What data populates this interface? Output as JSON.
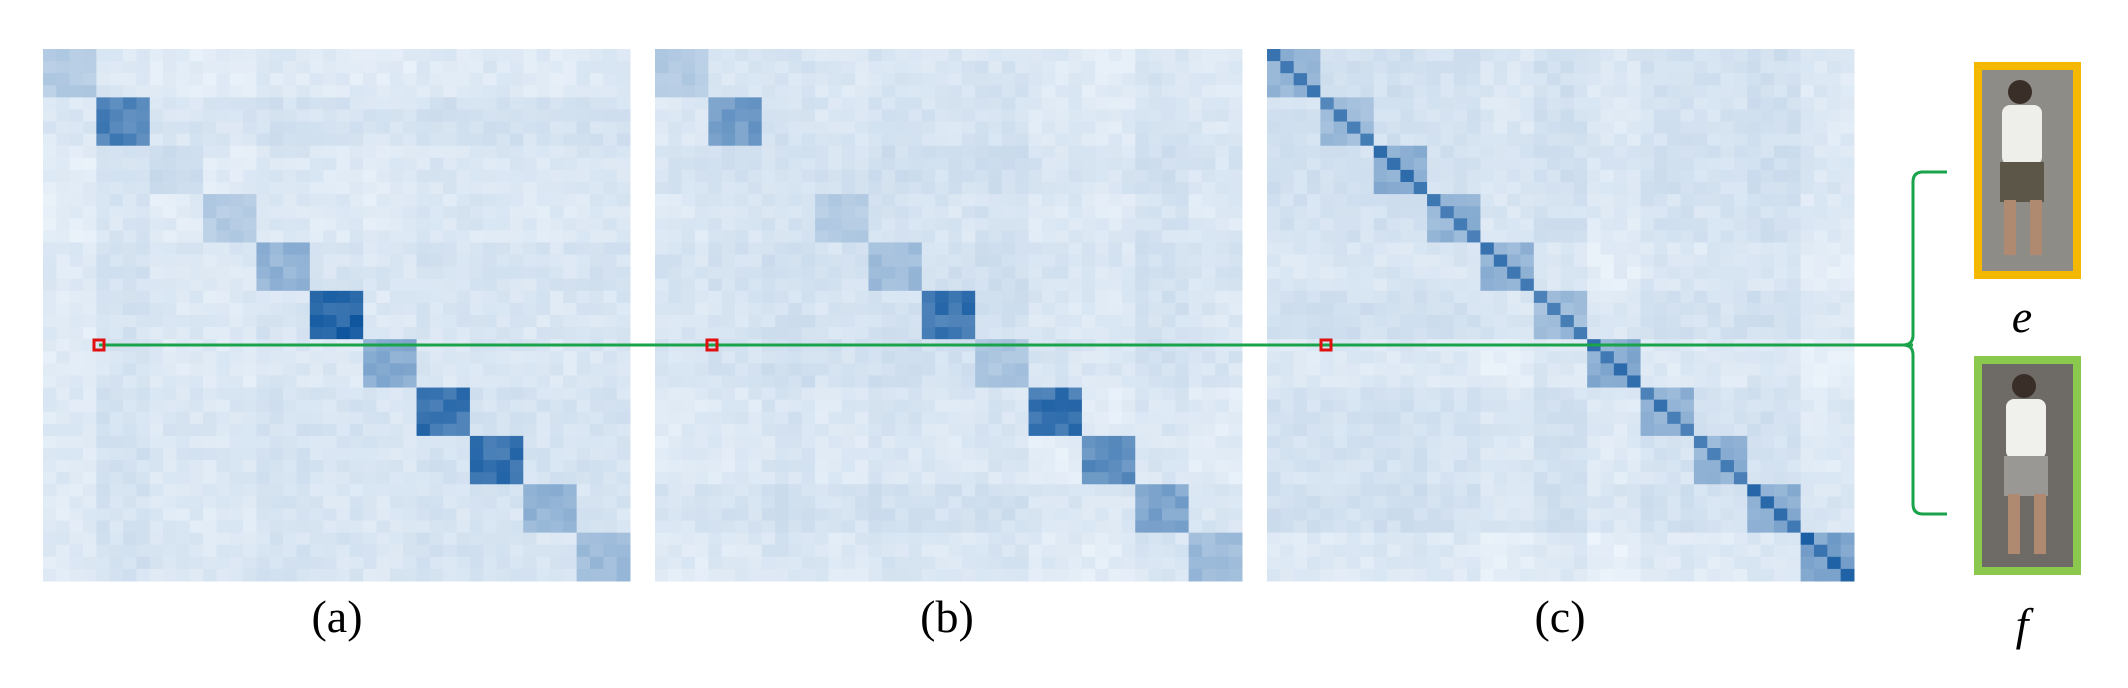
{
  "panels": [
    {
      "label": "(a)"
    },
    {
      "label": "(b)"
    },
    {
      "label": "(c)"
    }
  ],
  "images": [
    {
      "label": "e"
    },
    {
      "label": "f"
    }
  ]
}
